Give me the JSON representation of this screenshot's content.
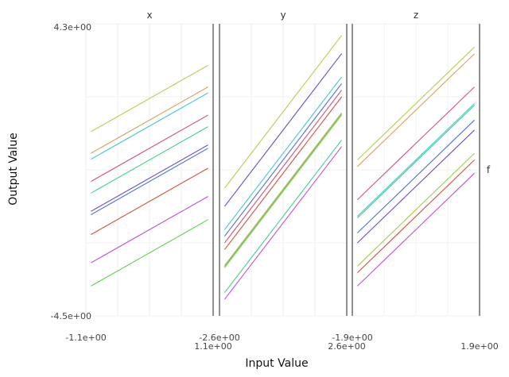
{
  "chart_data": {
    "type": "line",
    "xlabel": "Input Value",
    "ylabel": "Output Value",
    "ylim": [
      -4.5,
      4.3
    ],
    "y_tick_labels": [
      "4.3e+00",
      "-4.5e+00"
    ],
    "right_strip_label": "f",
    "grid": true,
    "panels": [
      {
        "title": "x",
        "xlim": [
          -1.1,
          1.1
        ],
        "x_tick_labels": [
          "-1.1e+00",
          "1.1e+00"
        ],
        "series": [
          {
            "color": "#b5cf4a",
            "x": [
              -1.1,
              1.1
            ],
            "y": [
              1.05,
              3.05
            ]
          },
          {
            "color": "#d9a45a",
            "x": [
              -1.1,
              1.1
            ],
            "y": [
              0.4,
              2.4
            ]
          },
          {
            "color": "#43c9d1",
            "x": [
              -1.1,
              1.1
            ],
            "y": [
              0.22,
              2.22
            ]
          },
          {
            "color": "#d6527a",
            "x": [
              -1.1,
              1.1
            ],
            "y": [
              -0.45,
              1.55
            ]
          },
          {
            "color": "#3fd18a",
            "x": [
              -1.1,
              1.1
            ],
            "y": [
              -0.8,
              1.2
            ]
          },
          {
            "color": "#6a4fc9",
            "x": [
              -1.1,
              1.1
            ],
            "y": [
              -1.35,
              0.65
            ]
          },
          {
            "color": "#4a73d6",
            "x": [
              -1.1,
              1.1
            ],
            "y": [
              -1.45,
              0.55
            ]
          },
          {
            "color": "#d6503c",
            "x": [
              -1.1,
              1.1
            ],
            "y": [
              -2.05,
              -0.05
            ]
          },
          {
            "color": "#c44fd6",
            "x": [
              -1.1,
              1.1
            ],
            "y": [
              -2.9,
              -0.9
            ]
          },
          {
            "color": "#5fd14a",
            "x": [
              -1.1,
              1.1
            ],
            "y": [
              -3.6,
              -1.6
            ]
          }
        ]
      },
      {
        "title": "y",
        "xlim": [
          -2.6,
          2.6
        ],
        "x_tick_labels": [
          "-2.6e+00",
          "2.6e+00"
        ],
        "series": [
          {
            "color": "#b5cf4a",
            "x": [
              -2.6,
              2.6
            ],
            "y": [
              -0.65,
              3.95
            ]
          },
          {
            "color": "#6a4fc9",
            "x": [
              -2.6,
              2.6
            ],
            "y": [
              -1.2,
              3.4
            ]
          },
          {
            "color": "#43c9d1",
            "x": [
              -2.6,
              2.6
            ],
            "y": [
              -1.9,
              2.7
            ]
          },
          {
            "color": "#4a73d6",
            "x": [
              -2.6,
              2.6
            ],
            "y": [
              -2.1,
              2.5
            ]
          },
          {
            "color": "#d6527a",
            "x": [
              -2.6,
              2.6
            ],
            "y": [
              -2.3,
              2.3
            ]
          },
          {
            "color": "#d6503c",
            "x": [
              -2.6,
              2.6
            ],
            "y": [
              -2.5,
              2.1
            ]
          },
          {
            "color": "#d9a45a",
            "x": [
              -2.6,
              2.6
            ],
            "y": [
              -2.98,
              1.62
            ]
          },
          {
            "color": "#3fd18a",
            "x": [
              -2.6,
              2.6
            ],
            "y": [
              -3.02,
              1.58
            ]
          },
          {
            "color": "#9bd14a",
            "x": [
              -2.6,
              2.6
            ],
            "y": [
              -3.05,
              1.55
            ]
          },
          {
            "color": "#3fd18a",
            "x": [
              -2.6,
              2.6
            ],
            "y": [
              -3.8,
              0.8
            ]
          },
          {
            "color": "#c44fd6",
            "x": [
              -2.6,
              2.6
            ],
            "y": [
              -4.0,
              0.6
            ]
          }
        ]
      },
      {
        "title": "z",
        "xlim": [
          -1.9,
          1.9
        ],
        "x_tick_labels": [
          "-1.9e+00",
          "1.9e+00"
        ],
        "series": [
          {
            "color": "#b5cf4a",
            "x": [
              -1.9,
              1.9
            ],
            "y": [
              0.2,
              3.6
            ]
          },
          {
            "color": "#d9a45a",
            "x": [
              -1.9,
              1.9
            ],
            "y": [
              0.0,
              3.4
            ]
          },
          {
            "color": "#d6527a",
            "x": [
              -1.9,
              1.9
            ],
            "y": [
              -1.0,
              2.4
            ]
          },
          {
            "color": "#43c9d1",
            "x": [
              -1.9,
              1.9
            ],
            "y": [
              -1.5,
              1.9
            ]
          },
          {
            "color": "#3fd18a",
            "x": [
              -1.9,
              1.9
            ],
            "y": [
              -1.55,
              1.85
            ]
          },
          {
            "color": "#4a73d6",
            "x": [
              -1.9,
              1.9
            ],
            "y": [
              -2.0,
              1.4
            ]
          },
          {
            "color": "#6a4fc9",
            "x": [
              -1.9,
              1.9
            ],
            "y": [
              -2.3,
              1.1
            ]
          },
          {
            "color": "#9bd14a",
            "x": [
              -1.9,
              1.9
            ],
            "y": [
              -3.0,
              0.4
            ]
          },
          {
            "color": "#d6503c",
            "x": [
              -1.9,
              1.9
            ],
            "y": [
              -3.2,
              0.2
            ]
          },
          {
            "color": "#c44fd6",
            "x": [
              -1.9,
              1.9
            ],
            "y": [
              -3.6,
              -0.2
            ]
          }
        ]
      }
    ]
  }
}
